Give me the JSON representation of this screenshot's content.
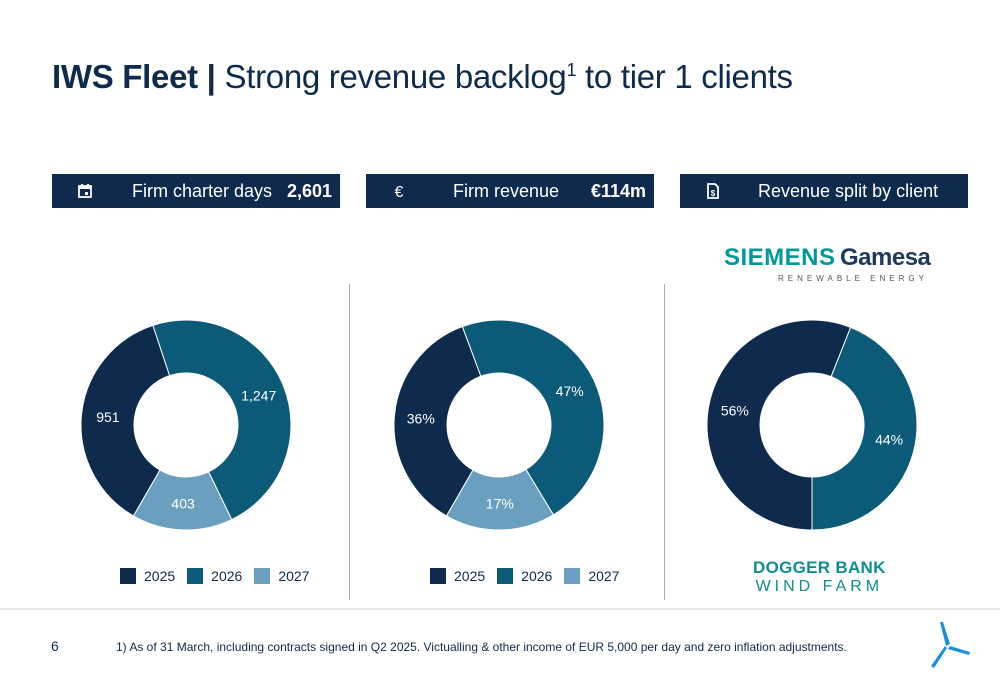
{
  "title": {
    "bold": "IWS Fleet |",
    "light": "Strong revenue backlog",
    "sup": "1",
    "rest": " to tier 1 clients"
  },
  "headers": [
    {
      "label": "Firm charter days",
      "value": "2,601",
      "icon": "calendar-icon"
    },
    {
      "label": "Firm revenue",
      "value": "€114m",
      "icon": "euro-icon"
    },
    {
      "label": "Revenue split by client",
      "value": "",
      "icon": "document-icon"
    }
  ],
  "colors": {
    "c2025": "#0e2a4d",
    "c2026": "#0b5a78",
    "c2027": "#6a9fc0",
    "header_bg": "#0e2a4d"
  },
  "legend": [
    "2025",
    "2026",
    "2027"
  ],
  "clients": {
    "siemens_line1": "SIEMENS",
    "siemens_line2": "Gamesa",
    "siemens_sub": "RENEWABLE ENERGY",
    "dogger_line1": "DOGGER BANK",
    "dogger_line2": "WIND FARM"
  },
  "chart_data": [
    {
      "type": "pie",
      "subtype": "donut",
      "categories": [
        "2025",
        "2026",
        "2027"
      ],
      "values": [
        951,
        1247,
        403
      ],
      "labels": [
        "951",
        "1,247",
        "403"
      ]
    },
    {
      "type": "pie",
      "subtype": "donut",
      "categories": [
        "2025",
        "2026",
        "2027"
      ],
      "values": [
        36,
        47,
        17
      ],
      "labels": [
        "36%",
        "47%",
        "17%"
      ]
    },
    {
      "type": "pie",
      "subtype": "donut",
      "categories": [
        "Siemens Gamesa",
        "Dogger Bank Wind Farm"
      ],
      "values": [
        56,
        44
      ],
      "labels": [
        "56%",
        "44%"
      ]
    }
  ],
  "footer": {
    "page": "6",
    "footnote": "1) As of 31 March, including contracts signed in Q2 2025. Victualling & other income of EUR 5,000 per day and zero inflation adjustments."
  }
}
